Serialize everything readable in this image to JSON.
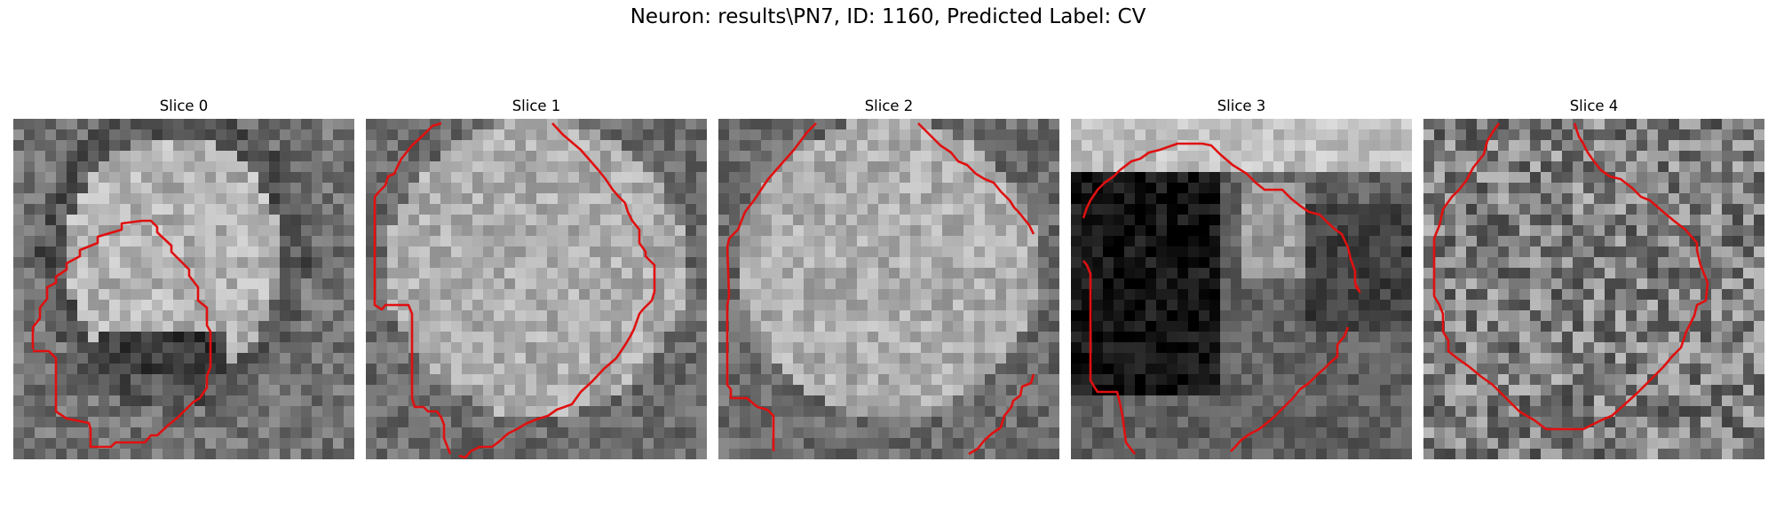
{
  "figure": {
    "title": "Neuron: results\\PN7, ID: 1160, Predicted Label: CV",
    "panels": [
      {
        "title": "Slice 0",
        "seed": 11,
        "theme": "soft"
      },
      {
        "title": "Slice 1",
        "seed": 23,
        "theme": "bright"
      },
      {
        "title": "Slice 2",
        "seed": 37,
        "theme": "bright"
      },
      {
        "title": "Slice 3",
        "seed": 51,
        "theme": "dark"
      },
      {
        "title": "Slice 4",
        "seed": 67,
        "theme": "noise"
      }
    ],
    "contour_color": "#e01010"
  }
}
